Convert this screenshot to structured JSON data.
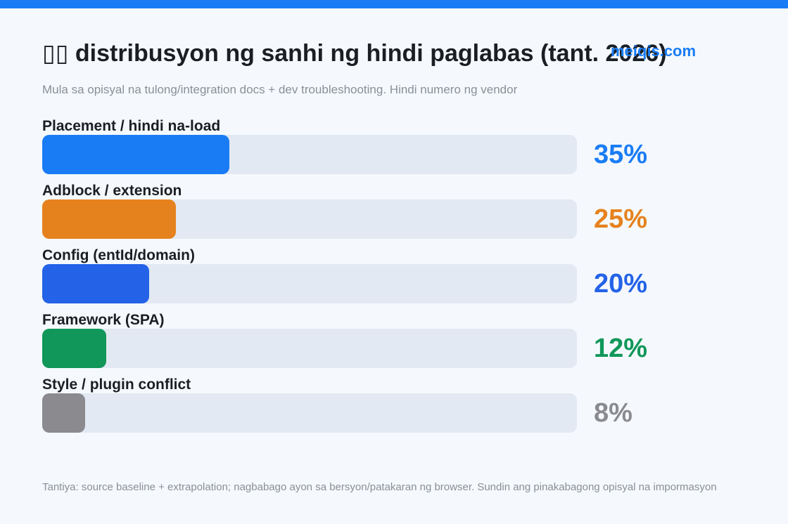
{
  "header": {
    "title": "▯▯ distribusyon ng sanhi ng hindi paglabas (tant. 2026)",
    "watermark": "meiqis.com",
    "subtitle": "Mula sa opisyal na tulong/integration docs + dev troubleshooting. Hindi numero ng vendor"
  },
  "footer": {
    "note": "Tantiya: source baseline + extrapolation; nagbabago ayon sa bersyon/patakaran ng browser. Sundin ang pinakabagong opisyal na impormasyon"
  },
  "colors": {
    "accent": "#1a7cf5",
    "track": "#e3e9f3"
  },
  "chart_data": {
    "type": "bar",
    "orientation": "horizontal",
    "title": "▯▯ distribusyon ng sanhi ng hindi paglabas (tant. 2026)",
    "xlim": [
      0,
      100
    ],
    "unit": "%",
    "categories": [
      "Placement / hindi na-load",
      "Adblock / extension",
      "Config (entId/domain)",
      "Framework (SPA)",
      "Style / plugin conflict"
    ],
    "values": [
      35,
      25,
      20,
      12,
      8
    ],
    "value_labels": [
      "35%",
      "25%",
      "20%",
      "12%",
      "8%"
    ],
    "colors": [
      "#1a7cf5",
      "#e6821e",
      "#2463e8",
      "#109759",
      "#8a8a8f"
    ]
  }
}
